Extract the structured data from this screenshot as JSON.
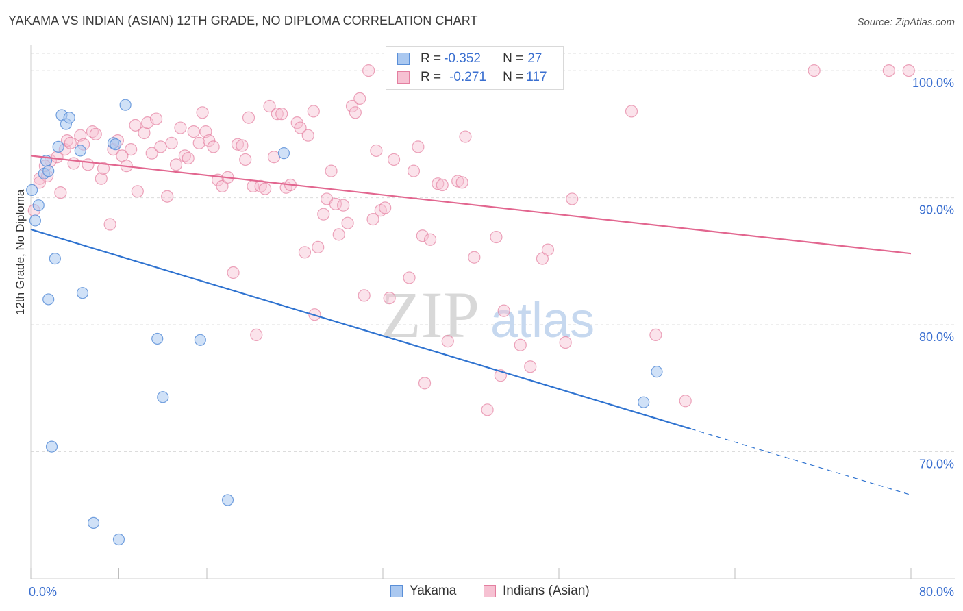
{
  "header": {
    "title": "YAKAMA VS INDIAN (ASIAN) 12TH GRADE, NO DIPLOMA CORRELATION CHART",
    "source": "Source: ZipAtlas.com"
  },
  "watermark": {
    "zip": "ZIP",
    "atlas": "atlas"
  },
  "legend": {
    "yakama": {
      "r_label": "R = ",
      "r_value": "-0.352",
      "n_label": "N = ",
      "n_value": "27"
    },
    "indians": {
      "r_label": "R = ",
      "r_value": "-0.271",
      "n_label": "N = ",
      "n_value": "117"
    }
  },
  "bottom_legend": {
    "yakama": "Yakama",
    "indians": "Indians (Asian)"
  },
  "colors": {
    "yakama_fill": "#aac8f0",
    "yakama_stroke": "#5a8fd8",
    "yakama_line": "#2f73d0",
    "indians_fill": "#f6c1d2",
    "indians_stroke": "#e47fa0",
    "indians_line": "#e2668f",
    "tick_label": "#3a6fd0",
    "grid": "#dcdcdc"
  },
  "chart_data": {
    "type": "scatter",
    "xlabel": "",
    "ylabel": "12th Grade, No Diploma",
    "xlim": [
      0,
      80
    ],
    "ylim": [
      60,
      102
    ],
    "x_tick_labels": [
      {
        "value": 0,
        "label": "0.0%"
      },
      {
        "value": 80,
        "label": "80.0%"
      }
    ],
    "y_tick_labels": [
      {
        "value": 70,
        "label": "70.0%"
      },
      {
        "value": 80,
        "label": "80.0%"
      },
      {
        "value": 90,
        "label": "90.0%"
      },
      {
        "value": 100,
        "label": "100.0%"
      }
    ],
    "grid": true,
    "legend_position": "top-center",
    "series": [
      {
        "name": "Yakama",
        "r": -0.352,
        "n": 27,
        "trend": {
          "x": [
            0,
            60
          ],
          "y": [
            87.5,
            71.8
          ],
          "dashed_to": [
            80,
            66.6
          ]
        },
        "points": [
          [
            0.1,
            90.6
          ],
          [
            0.4,
            88.2
          ],
          [
            0.7,
            89.4
          ],
          [
            1.2,
            91.9
          ],
          [
            1.4,
            92.9
          ],
          [
            1.6,
            92.1
          ],
          [
            1.6,
            82.0
          ],
          [
            1.9,
            70.4
          ],
          [
            2.2,
            85.2
          ],
          [
            2.5,
            94.0
          ],
          [
            2.8,
            96.5
          ],
          [
            3.2,
            95.8
          ],
          [
            3.5,
            96.3
          ],
          [
            4.5,
            93.7
          ],
          [
            4.7,
            82.5
          ],
          [
            5.7,
            64.4
          ],
          [
            7.5,
            94.3
          ],
          [
            7.7,
            94.2
          ],
          [
            8.0,
            63.1
          ],
          [
            8.6,
            97.3
          ],
          [
            11.5,
            78.9
          ],
          [
            12.0,
            74.3
          ],
          [
            15.4,
            78.8
          ],
          [
            17.9,
            66.2
          ],
          [
            23.0,
            93.5
          ],
          [
            56.9,
            76.3
          ],
          [
            55.7,
            73.9
          ]
        ]
      },
      {
        "name": "Indians (Asian)",
        "r": -0.271,
        "n": 117,
        "trend": {
          "x": [
            0,
            80
          ],
          "y": [
            93.3,
            85.6
          ]
        },
        "points": [
          [
            0.3,
            89.0
          ],
          [
            0.8,
            91.5
          ],
          [
            1.5,
            91.7
          ],
          [
            1.8,
            92.9
          ],
          [
            2.4,
            93.2
          ],
          [
            2.7,
            90.4
          ],
          [
            3.1,
            93.8
          ],
          [
            3.3,
            94.5
          ],
          [
            3.6,
            94.3
          ],
          [
            3.9,
            92.7
          ],
          [
            4.5,
            94.9
          ],
          [
            4.8,
            94.2
          ],
          [
            5.2,
            92.6
          ],
          [
            5.6,
            95.2
          ],
          [
            5.9,
            95.0
          ],
          [
            6.4,
            91.5
          ],
          [
            6.6,
            92.3
          ],
          [
            7.2,
            87.9
          ],
          [
            7.5,
            93.8
          ],
          [
            7.9,
            94.5
          ],
          [
            8.3,
            93.3
          ],
          [
            8.7,
            92.5
          ],
          [
            9.1,
            93.8
          ],
          [
            9.5,
            95.7
          ],
          [
            9.7,
            90.5
          ],
          [
            10.3,
            95.1
          ],
          [
            10.6,
            95.9
          ],
          [
            11.0,
            93.5
          ],
          [
            11.4,
            96.2
          ],
          [
            11.8,
            94.0
          ],
          [
            12.4,
            90.1
          ],
          [
            12.8,
            94.3
          ],
          [
            13.2,
            92.6
          ],
          [
            13.6,
            95.5
          ],
          [
            14.0,
            93.3
          ],
          [
            14.3,
            93.1
          ],
          [
            14.8,
            95.2
          ],
          [
            15.3,
            94.3
          ],
          [
            15.6,
            96.7
          ],
          [
            15.9,
            95.2
          ],
          [
            16.2,
            94.5
          ],
          [
            16.6,
            94.0
          ],
          [
            17.0,
            91.4
          ],
          [
            17.4,
            90.9
          ],
          [
            17.9,
            91.6
          ],
          [
            18.4,
            84.1
          ],
          [
            18.8,
            94.2
          ],
          [
            19.2,
            94.1
          ],
          [
            19.5,
            93.0
          ],
          [
            19.8,
            96.3
          ],
          [
            20.2,
            90.9
          ],
          [
            20.5,
            79.2
          ],
          [
            20.9,
            90.9
          ],
          [
            21.3,
            90.7
          ],
          [
            21.7,
            97.2
          ],
          [
            22.1,
            93.2
          ],
          [
            22.4,
            96.6
          ],
          [
            22.8,
            96.6
          ],
          [
            23.2,
            90.8
          ],
          [
            23.6,
            91.0
          ],
          [
            24.2,
            95.9
          ],
          [
            24.5,
            95.5
          ],
          [
            24.9,
            85.7
          ],
          [
            25.2,
            94.9
          ],
          [
            25.7,
            96.8
          ],
          [
            25.8,
            80.8
          ],
          [
            26.1,
            86.1
          ],
          [
            26.6,
            88.7
          ],
          [
            26.9,
            89.9
          ],
          [
            27.3,
            92.1
          ],
          [
            27.7,
            89.5
          ],
          [
            28.0,
            87.1
          ],
          [
            28.4,
            89.4
          ],
          [
            28.8,
            88.0
          ],
          [
            29.2,
            97.2
          ],
          [
            29.5,
            96.7
          ],
          [
            29.9,
            97.8
          ],
          [
            30.3,
            82.3
          ],
          [
            30.7,
            100.0
          ],
          [
            31.1,
            88.3
          ],
          [
            31.4,
            93.7
          ],
          [
            31.8,
            89.0
          ],
          [
            32.2,
            89.2
          ],
          [
            32.6,
            82.1
          ],
          [
            33.0,
            93.0
          ],
          [
            34.4,
            83.7
          ],
          [
            34.8,
            92.1
          ],
          [
            35.2,
            94.0
          ],
          [
            35.6,
            87.0
          ],
          [
            35.8,
            75.4
          ],
          [
            36.3,
            86.7
          ],
          [
            37.0,
            91.1
          ],
          [
            37.4,
            91.0
          ],
          [
            37.9,
            78.7
          ],
          [
            38.8,
            91.3
          ],
          [
            39.2,
            91.2
          ],
          [
            39.5,
            94.8
          ],
          [
            40.3,
            85.3
          ],
          [
            41.5,
            73.3
          ],
          [
            42.3,
            86.9
          ],
          [
            42.7,
            76.0
          ],
          [
            43.0,
            81.1
          ],
          [
            44.5,
            78.4
          ],
          [
            45.4,
            76.7
          ],
          [
            46.5,
            85.2
          ],
          [
            47.0,
            85.9
          ],
          [
            47.3,
            100.0
          ],
          [
            48.6,
            78.6
          ],
          [
            49.2,
            89.9
          ],
          [
            54.6,
            96.8
          ],
          [
            56.8,
            79.2
          ],
          [
            59.5,
            74.0
          ],
          [
            71.2,
            100.0
          ],
          [
            78.0,
            100.0
          ],
          [
            79.8,
            100.0
          ],
          [
            0.8,
            91.2
          ],
          [
            1.3,
            92.5
          ]
        ]
      }
    ]
  }
}
